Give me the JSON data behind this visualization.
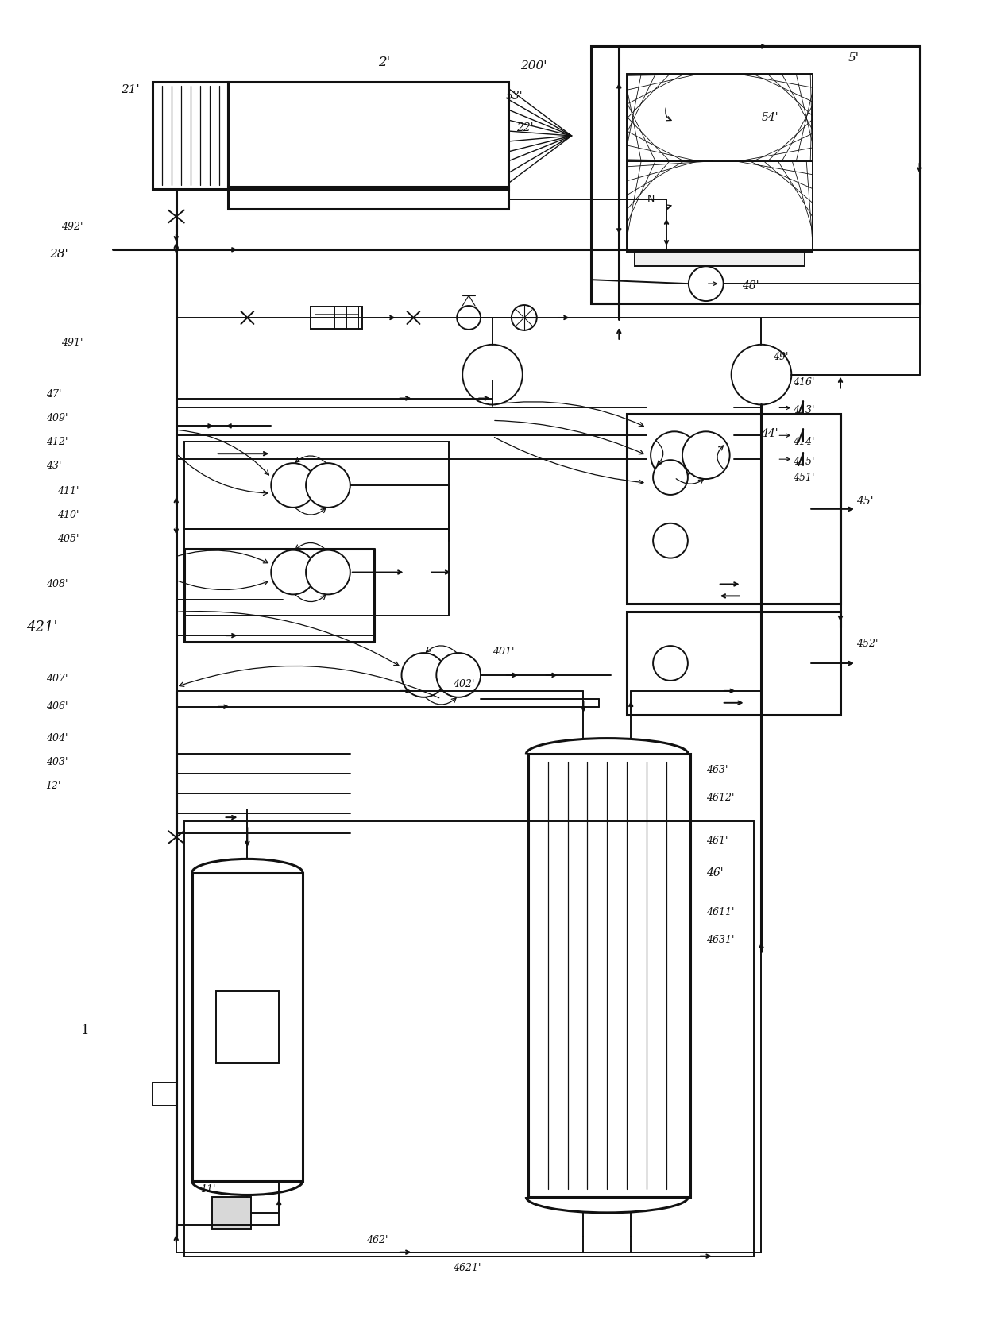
{
  "bg_color": "#ffffff",
  "line_color": "#111111",
  "lw": 1.4,
  "lw2": 2.2,
  "fig_width": 12.4,
  "fig_height": 16.72
}
